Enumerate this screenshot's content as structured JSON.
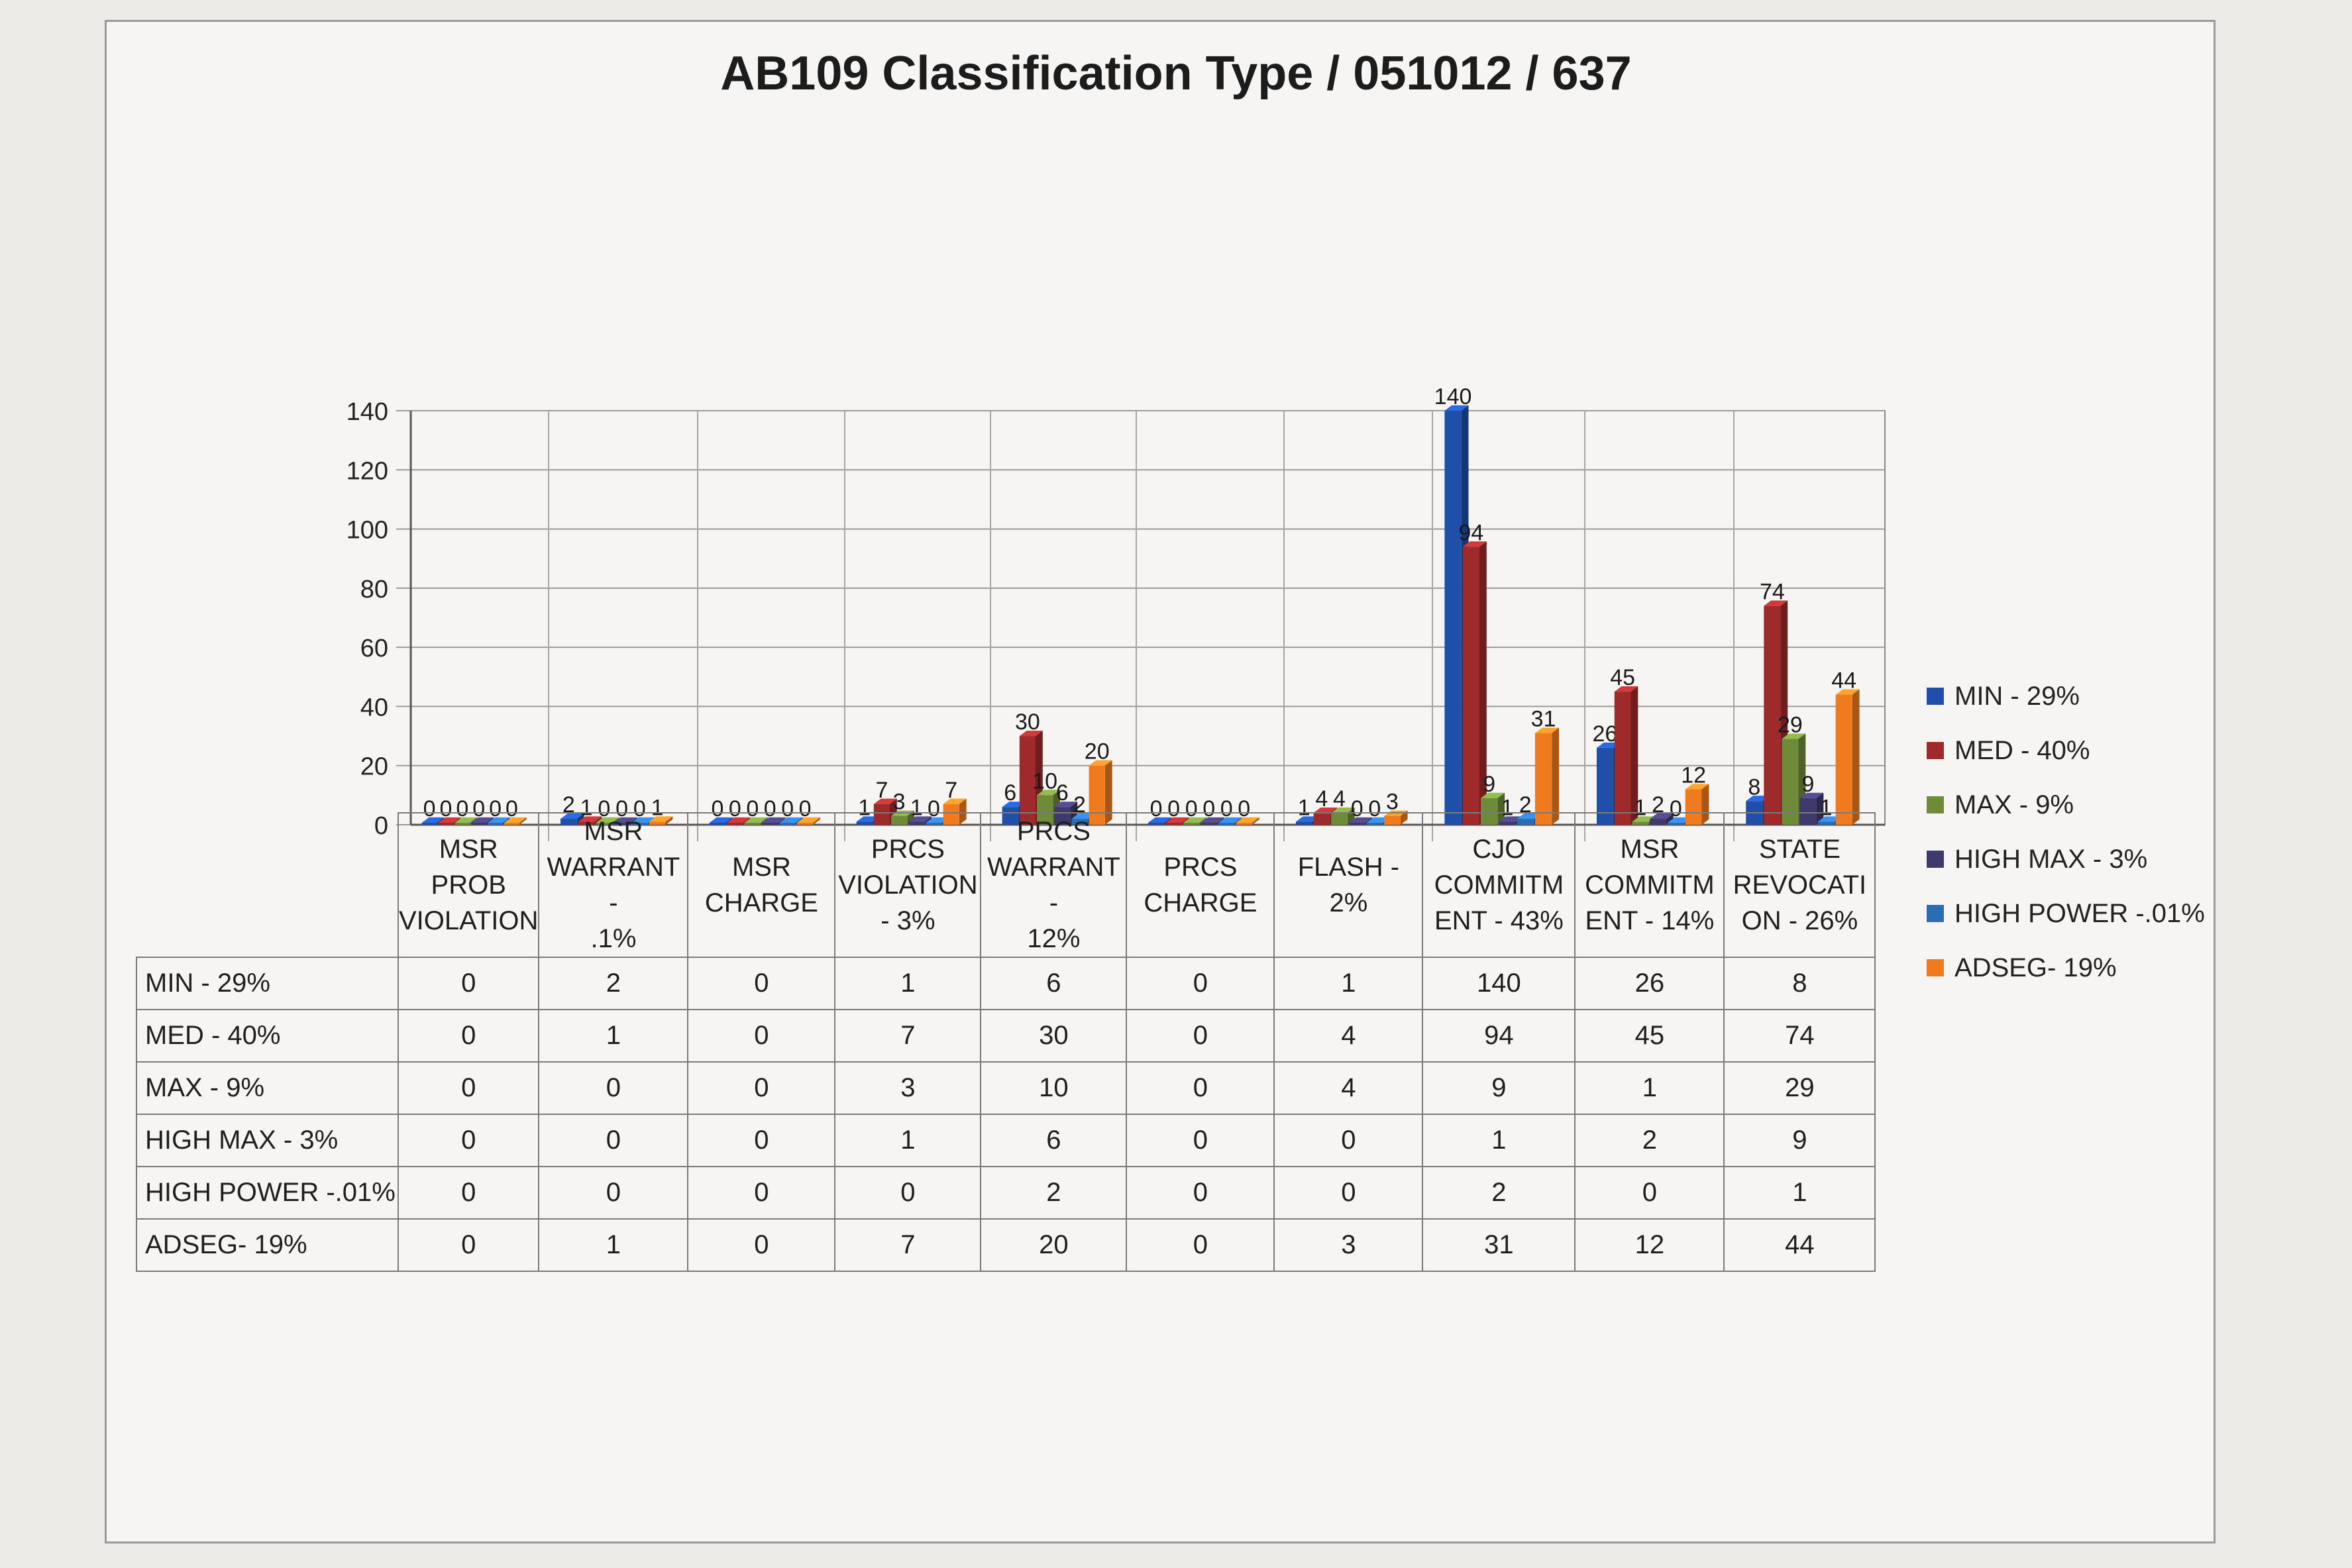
{
  "chart_data": {
    "type": "bar",
    "title": "AB109 Classification Type / 051012 / 637",
    "categories": [
      "MSR PROB VIOLATION",
      "MSR WARRANT - .1%",
      "MSR CHARGE",
      "PRCS VIOLATION - 3%",
      "PRCS WARRANT - 12%",
      "PRCS CHARGE",
      "FLASH - 2%",
      "CJO COMMITMENT - 43%",
      "MSR COMMITMENT - 14%",
      "STATE REVOCATION - 26%"
    ],
    "series": [
      {
        "name": "MIN - 29%",
        "color": "#1f4fa8",
        "values": [
          0,
          2,
          0,
          1,
          6,
          0,
          1,
          140,
          26,
          8
        ]
      },
      {
        "name": "MED - 40%",
        "color": "#9e2a2b",
        "values": [
          0,
          1,
          0,
          7,
          30,
          0,
          4,
          94,
          45,
          74
        ]
      },
      {
        "name": "MAX - 9%",
        "color": "#6e8b3a",
        "values": [
          0,
          0,
          0,
          3,
          10,
          0,
          4,
          9,
          1,
          29
        ]
      },
      {
        "name": "HIGH MAX - 3%",
        "color": "#3f3a6e",
        "values": [
          0,
          0,
          0,
          1,
          6,
          0,
          0,
          1,
          2,
          9
        ]
      },
      {
        "name": "HIGH POWER -.01%",
        "color": "#2a6db3",
        "values": [
          0,
          0,
          0,
          0,
          2,
          0,
          0,
          2,
          0,
          1
        ]
      },
      {
        "name": "ADSEG- 19%",
        "color": "#f07a1e",
        "values": [
          0,
          1,
          0,
          7,
          20,
          0,
          3,
          31,
          12,
          44
        ]
      }
    ],
    "ylim": [
      0,
      140
    ],
    "yticks": [
      0,
      20,
      40,
      60,
      80,
      100,
      120,
      140
    ],
    "grid": true,
    "legend_position": "right",
    "data_table": true
  },
  "table": {
    "headers": [
      [
        "MSR PROB",
        "VIOLATION"
      ],
      [
        "MSR",
        "WARRANT -",
        ".1%"
      ],
      [
        "MSR",
        "CHARGE"
      ],
      [
        "PRCS",
        "VIOLATION",
        "- 3%"
      ],
      [
        "PRCS",
        "WARRANT -",
        "12%"
      ],
      [
        "PRCS",
        "CHARGE"
      ],
      [
        "FLASH - 2%"
      ],
      [
        "CJO",
        "COMMITM",
        "ENT - 43%"
      ],
      [
        "MSR",
        "COMMITM",
        "ENT - 14%"
      ],
      [
        "STATE",
        "REVOCATI",
        "ON - 26%"
      ]
    ]
  }
}
